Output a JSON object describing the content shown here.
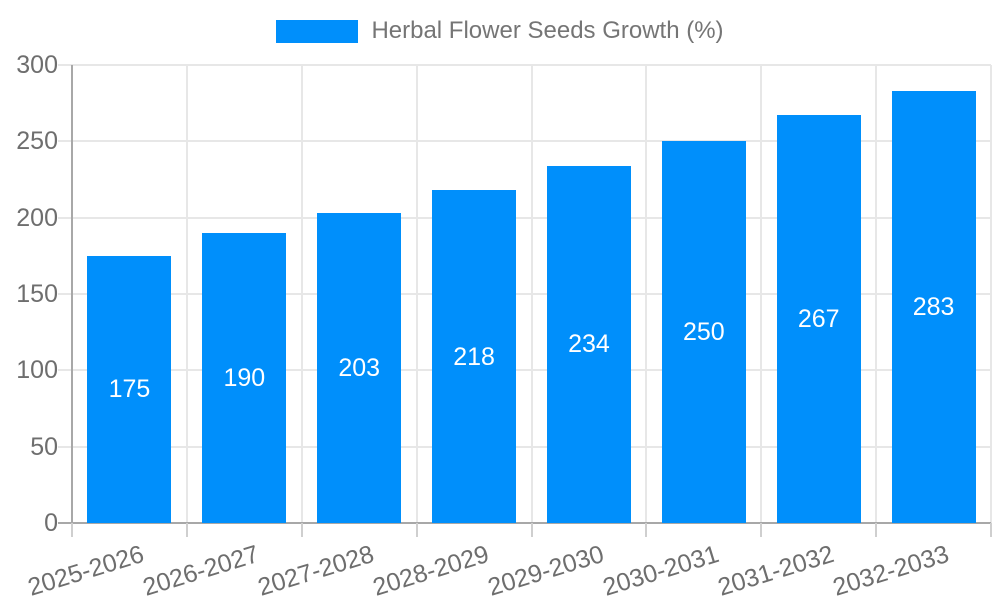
{
  "legend": {
    "label": "Herbal Flower Seeds Growth (%)",
    "swatch_color": "#008FFB"
  },
  "chart_data": {
    "type": "bar",
    "title": "Herbal Flower Seeds Growth (%)",
    "categories": [
      "2025-2026",
      "2026-2027",
      "2027-2028",
      "2028-2029",
      "2029-2030",
      "2030-2031",
      "2031-2032",
      "2032-2033"
    ],
    "values": [
      175,
      190,
      203,
      218,
      234,
      250,
      267,
      283
    ],
    "xlabel": "",
    "ylabel": "",
    "ylim": [
      0,
      300
    ],
    "yticks": [
      0,
      50,
      100,
      150,
      200,
      250,
      300
    ],
    "grid": true,
    "legend_position": "top",
    "colors": {
      "bar": "#008FFB",
      "value_label": "#FFFFFF",
      "axis_text": "#6E6E6E",
      "grid": "#E7E7E7",
      "axis_line": "#A8A8A8",
      "tick": "#CFCFCF"
    }
  }
}
